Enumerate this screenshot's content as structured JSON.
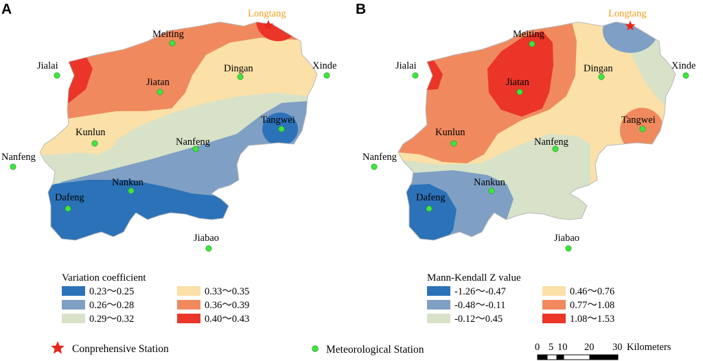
{
  "panels": [
    {
      "letter": "A",
      "legend_title": "Variation coefficient",
      "classes": [
        {
          "label": "0.23～0.25",
          "color": "#2c72b8"
        },
        {
          "label": "0.26～0.28",
          "color": "#7fa0c4"
        },
        {
          "label": "0.29～0.32",
          "color": "#d8e2c8"
        },
        {
          "label": "0.33～0.35",
          "color": "#fbe0a8"
        },
        {
          "label": "0.36～0.39",
          "color": "#f08a5e"
        },
        {
          "label": "0.40～0.43",
          "color": "#ea3528"
        }
      ]
    },
    {
      "letter": "B",
      "legend_title": "Mann-Kendall Z value",
      "classes": [
        {
          "label": "-1.26～-0.47",
          "color": "#2c72b8"
        },
        {
          "label": "-0.48～-0.11",
          "color": "#7fa0c4"
        },
        {
          "label": "-0.12～0.45",
          "color": "#d8e2c8"
        },
        {
          "label": "0.46～0.76",
          "color": "#fbe0a8"
        },
        {
          "label": "0.77～1.08",
          "color": "#f08a5e"
        },
        {
          "label": "1.08～1.53",
          "color": "#ea3528"
        }
      ]
    }
  ],
  "stations": {
    "comprehensive": "Longtang",
    "meteorological": [
      "Meiting",
      "Jialai",
      "Jiatan",
      "Dingan",
      "Xinde",
      "Kunlun",
      "Tangwei",
      "Nanfeng",
      "Nanfeng",
      "Nankun",
      "Dafeng",
      "Jiabao"
    ]
  },
  "key": {
    "comprehensive_label": "Conprehensive Station",
    "meteorological_label": "Meteorological Station",
    "star_color": "#e8261c",
    "dot_color": "#3ee63e"
  },
  "scale_bar": {
    "ticks": [
      "0",
      "5",
      "10",
      "20",
      "30"
    ],
    "unit": "Kilometers"
  }
}
